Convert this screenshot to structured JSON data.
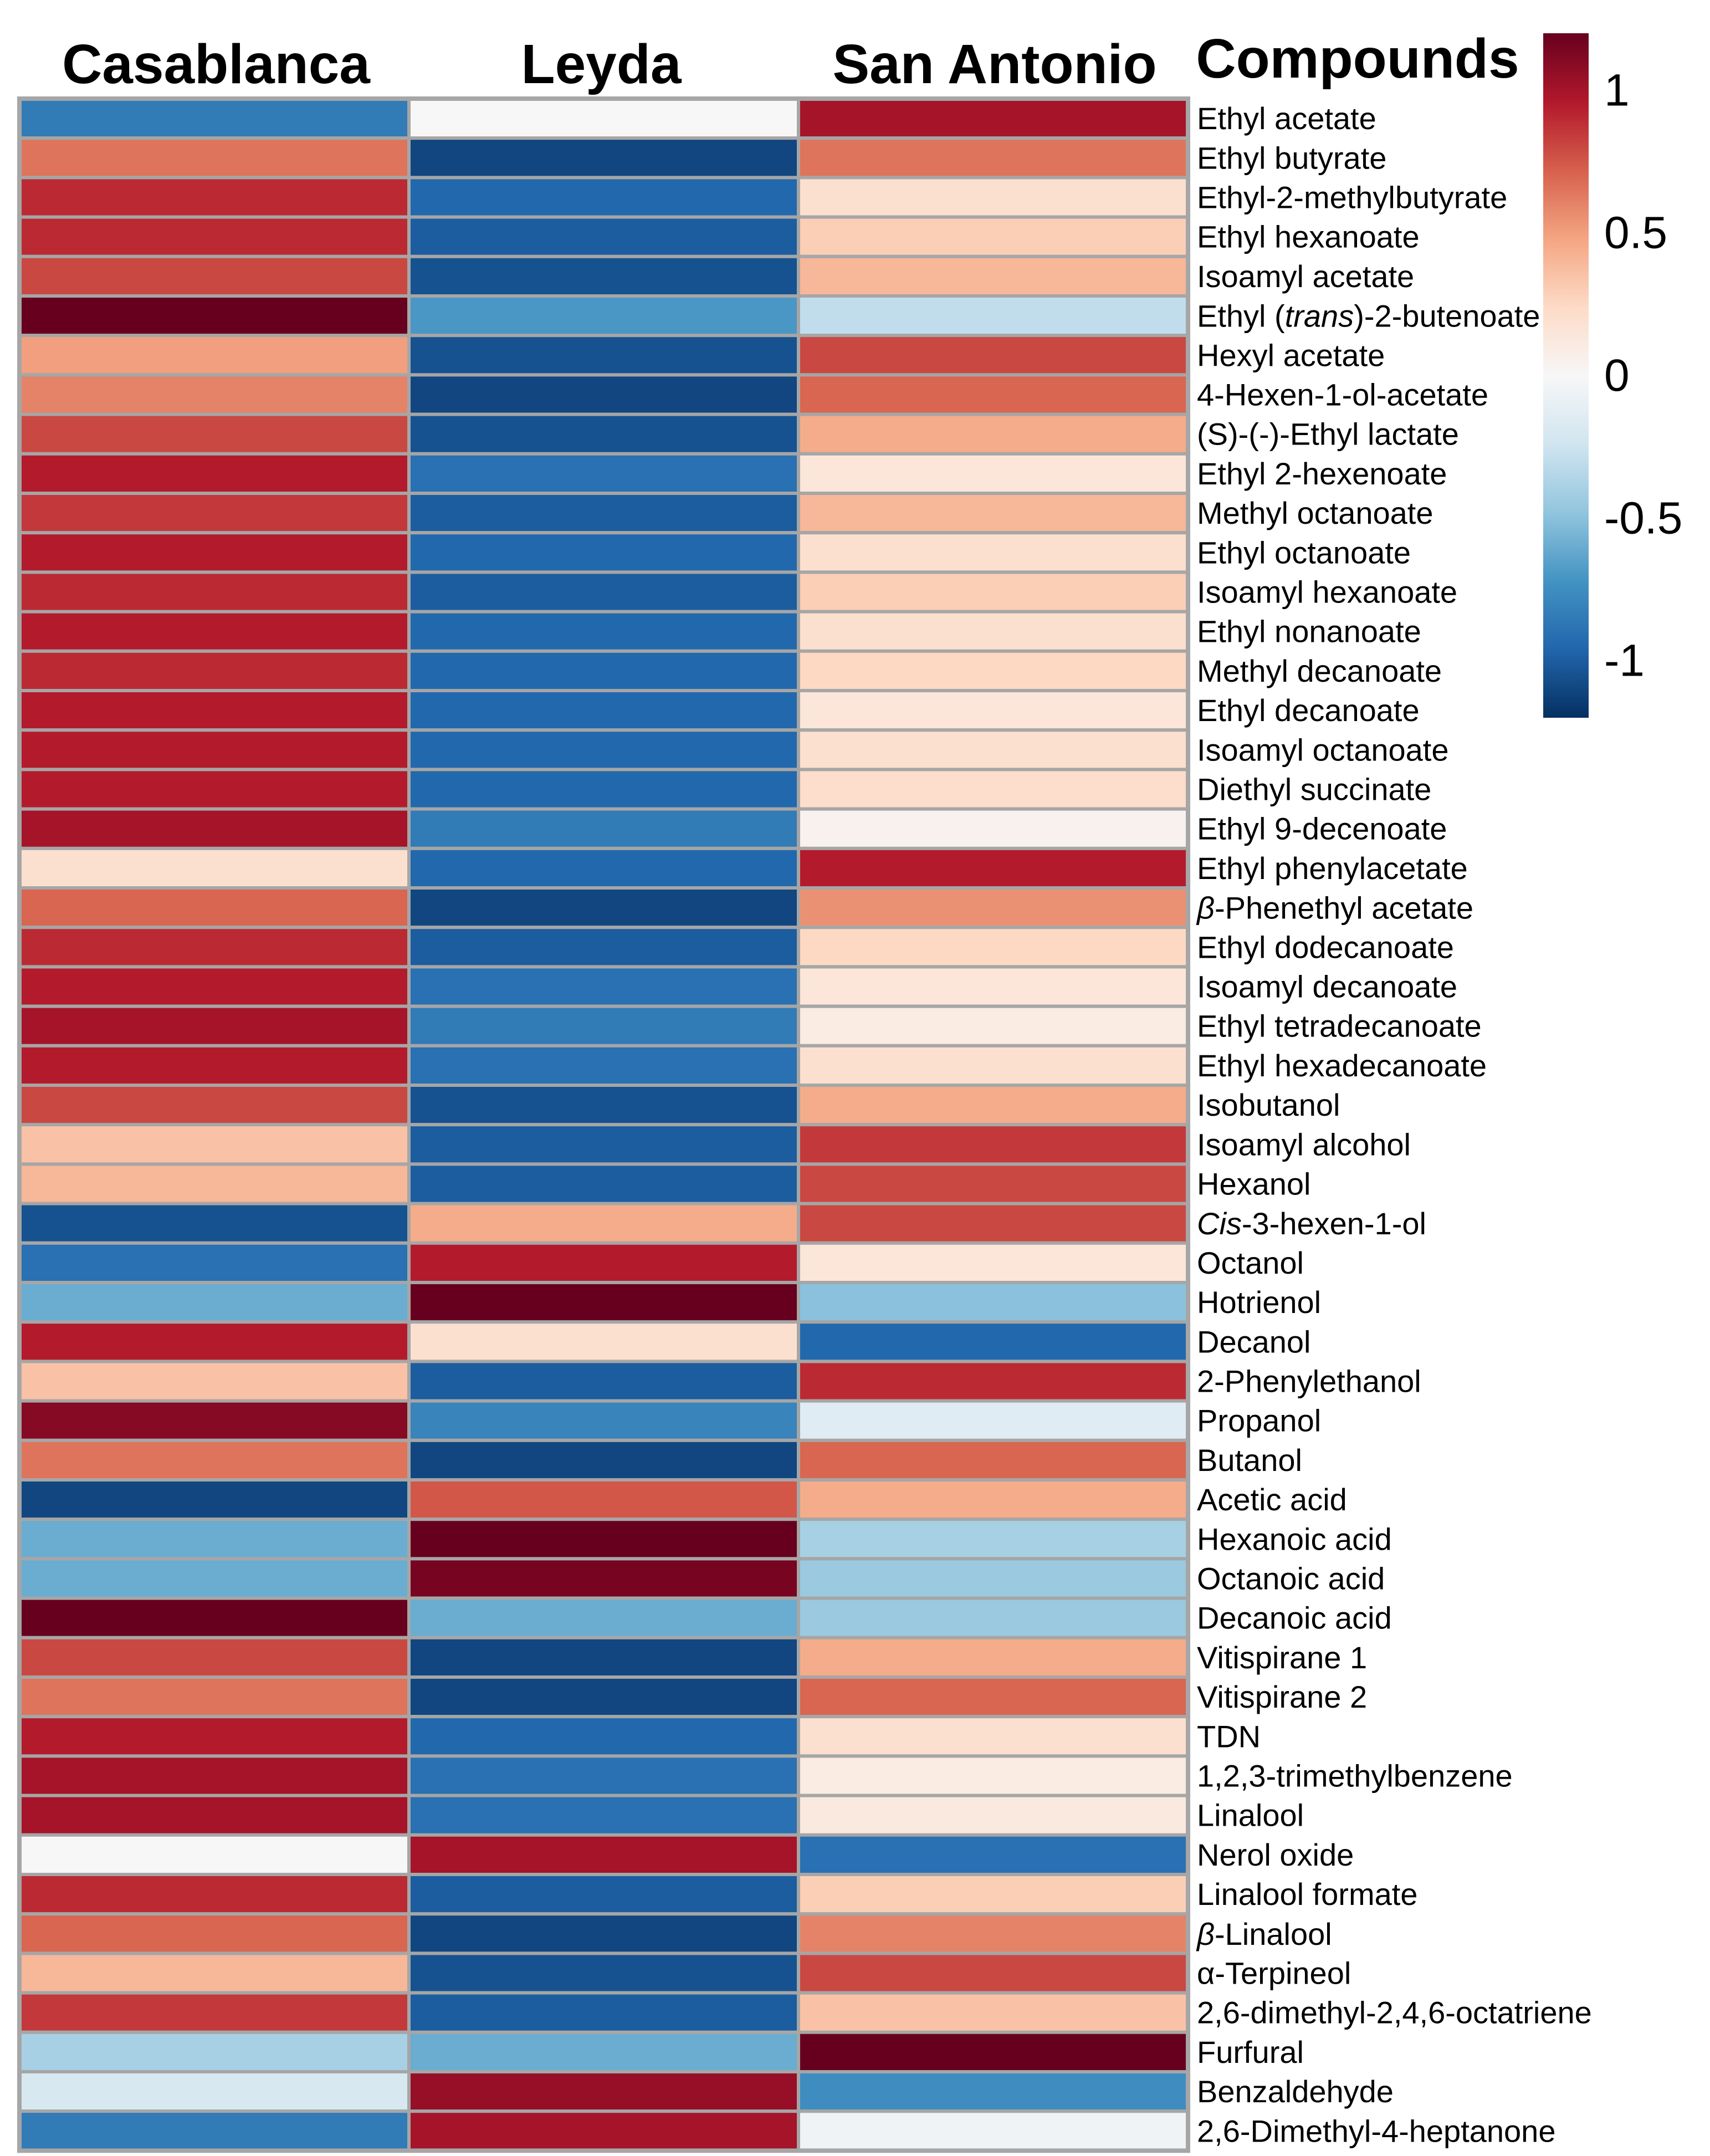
{
  "chart_data": {
    "type": "heatmap",
    "title": "",
    "columns": [
      "Casablanca",
      "Leyda",
      "San Antonio"
    ],
    "label_header": "Compounds",
    "rows": [
      {
        "label": "Ethyl acetate",
        "values": [
          -0.85,
          0.0,
          1.0
        ]
      },
      {
        "label": "Ethyl butyrate",
        "values": [
          0.65,
          -1.1,
          0.65
        ]
      },
      {
        "label": "Ethyl-2-methylbutyrate",
        "values": [
          0.9,
          -0.95,
          0.2
        ]
      },
      {
        "label": "Ethyl hexanoate",
        "values": [
          0.9,
          -1.0,
          0.3
        ]
      },
      {
        "label": "Isoamyl acetate",
        "values": [
          0.8,
          -1.05,
          0.4
        ]
      },
      {
        "label": "Ethyl (trans)-2-butenoate",
        "label_parts": [
          "Ethyl (",
          "trans",
          ")-2-butenoate"
        ],
        "values": [
          1.2,
          -0.7,
          -0.3
        ]
      },
      {
        "label": "Hexyl acetate",
        "values": [
          0.5,
          -1.05,
          0.8
        ]
      },
      {
        "label": "4-Hexen-1-ol-acetate",
        "values": [
          0.6,
          -1.1,
          0.7
        ]
      },
      {
        "label": "(S)-(-)-Ethyl lactate",
        "values": [
          0.8,
          -1.05,
          0.45
        ]
      },
      {
        "label": "Ethyl 2-hexenoate",
        "values": [
          0.95,
          -0.9,
          0.15
        ]
      },
      {
        "label": "Methyl octanoate",
        "values": [
          0.85,
          -1.0,
          0.4
        ]
      },
      {
        "label": "Ethyl octanoate",
        "values": [
          0.95,
          -0.95,
          0.2
        ]
      },
      {
        "label": "Isoamyl hexanoate",
        "values": [
          0.9,
          -1.0,
          0.3
        ]
      },
      {
        "label": "Ethyl nonanoate",
        "values": [
          0.95,
          -0.95,
          0.2
        ]
      },
      {
        "label": "Methyl decanoate",
        "values": [
          0.9,
          -0.95,
          0.25
        ]
      },
      {
        "label": "Ethyl decanoate",
        "values": [
          0.95,
          -0.95,
          0.15
        ]
      },
      {
        "label": "Isoamyl octanoate",
        "values": [
          0.95,
          -0.95,
          0.2
        ]
      },
      {
        "label": "Diethyl succinate",
        "values": [
          0.95,
          -0.95,
          0.22
        ]
      },
      {
        "label": "Ethyl 9-decenoate",
        "values": [
          1.0,
          -0.85,
          0.05
        ]
      },
      {
        "label": "Ethyl phenylacetate",
        "values": [
          0.2,
          -0.95,
          0.95
        ]
      },
      {
        "label": "β-Phenethyl acetate",
        "label_parts": [
          "",
          "β",
          "-Phenethyl acetate"
        ],
        "values": [
          0.7,
          -1.1,
          0.55
        ]
      },
      {
        "label": "Ethyl dodecanoate",
        "values": [
          0.9,
          -1.0,
          0.25
        ]
      },
      {
        "label": "Isoamyl decanoate",
        "values": [
          0.95,
          -0.9,
          0.15
        ]
      },
      {
        "label": "Ethyl tetradecanoate",
        "values": [
          1.0,
          -0.85,
          0.1
        ]
      },
      {
        "label": "Ethyl hexadecanoate",
        "values": [
          0.95,
          -0.9,
          0.2
        ]
      },
      {
        "label": "Isobutanol",
        "values": [
          0.8,
          -1.05,
          0.45
        ]
      },
      {
        "label": "Isoamyl alcohol",
        "values": [
          0.35,
          -1.0,
          0.85
        ]
      },
      {
        "label": "Hexanol",
        "values": [
          0.4,
          -1.0,
          0.8
        ]
      },
      {
        "label": "Cis-3-hexen-1-ol",
        "label_parts": [
          "",
          "Cis",
          "-3-hexen-1-ol"
        ],
        "values": [
          -1.05,
          0.45,
          0.8
        ]
      },
      {
        "label": "Octanol",
        "values": [
          -0.9,
          0.95,
          0.15
        ]
      },
      {
        "label": "Hotrienol",
        "values": [
          -0.6,
          1.2,
          -0.5
        ]
      },
      {
        "label": "Decanol",
        "values": [
          0.95,
          0.2,
          -0.95
        ]
      },
      {
        "label": "2-Phenylethanol",
        "values": [
          0.35,
          -1.0,
          0.9
        ]
      },
      {
        "label": "Propanol",
        "values": [
          1.1,
          -0.8,
          -0.15
        ]
      },
      {
        "label": "Butanol",
        "values": [
          0.65,
          -1.1,
          0.7
        ]
      },
      {
        "label": "Acetic acid",
        "values": [
          -1.1,
          0.75,
          0.45
        ]
      },
      {
        "label": "Hexanoic acid",
        "values": [
          -0.6,
          1.2,
          -0.4
        ]
      },
      {
        "label": "Octanoic acid",
        "values": [
          -0.6,
          1.15,
          -0.45
        ]
      },
      {
        "label": "Decanoic acid",
        "values": [
          1.2,
          -0.6,
          -0.45
        ]
      },
      {
        "label": "Vitispirane 1",
        "values": [
          0.8,
          -1.1,
          0.45
        ]
      },
      {
        "label": "Vitispirane 2",
        "values": [
          0.65,
          -1.1,
          0.7
        ]
      },
      {
        "label": "TDN",
        "values": [
          0.95,
          -0.95,
          0.2
        ]
      },
      {
        "label": "1,2,3-trimethylbenzene",
        "values": [
          1.0,
          -0.9,
          0.1
        ]
      },
      {
        "label": "Linalool",
        "values": [
          1.0,
          -0.9,
          0.12
        ]
      },
      {
        "label": "Nerol oxide",
        "values": [
          0.0,
          1.0,
          -0.9
        ]
      },
      {
        "label": "Linalool formate",
        "values": [
          0.9,
          -1.0,
          0.3
        ]
      },
      {
        "label": "β-Linalool",
        "label_parts": [
          "",
          "β",
          "-Linalool"
        ],
        "values": [
          0.7,
          -1.1,
          0.6
        ]
      },
      {
        "label": "α-Terpineol",
        "values": [
          0.4,
          -1.05,
          0.8
        ]
      },
      {
        "label": "2,6-dimethyl-2,4,6-octatriene",
        "values": [
          0.85,
          -1.0,
          0.35
        ]
      },
      {
        "label": "Furfural",
        "values": [
          -0.4,
          -0.6,
          1.2
        ]
      },
      {
        "label": "Benzaldehyde",
        "values": [
          -0.2,
          1.05,
          -0.75
        ]
      },
      {
        "label": "2,6-Dimethyl-4-heptanone",
        "values": [
          -0.85,
          1.0,
          -0.05
        ]
      }
    ],
    "colorbar": {
      "ticks": [
        1,
        0.5,
        0,
        -0.5,
        -1
      ],
      "tick_labels": [
        "1",
        "0.5",
        "0",
        "-0.5",
        "-1"
      ],
      "range": [
        -1.2,
        1.2
      ],
      "colors": [
        "#053061",
        "#2166ac",
        "#4393c3",
        "#92c5de",
        "#d1e5f0",
        "#f7f7f7",
        "#fddbc7",
        "#f4a582",
        "#d6604d",
        "#b2182b",
        "#67001f"
      ]
    }
  }
}
